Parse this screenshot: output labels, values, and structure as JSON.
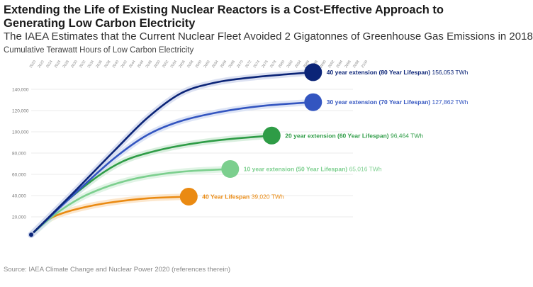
{
  "title": "Extending the Life of Existing Nuclear Reactors is a Cost-Effective Approach to Generating Low Carbon Electricity",
  "subtitle": "The IAEA Estimates that the Current Nuclear Fleet Avoided 2 Gigatonnes of Greenhouse Gas Emissions in 2018",
  "caption": "Cumulative Terawatt Hours of Low Carbon Electricity",
  "source": "Source: IAEA Climate Change and Nuclear Power 2020 (references therein)",
  "chart_data": {
    "type": "line",
    "x_ticks": [
      "2020",
      "2022",
      "2024",
      "2026",
      "2028",
      "2030",
      "2032",
      "2034",
      "2036",
      "2038",
      "2040",
      "2042",
      "2044",
      "2046",
      "2048",
      "2050",
      "2052",
      "2054",
      "2056",
      "2058",
      "2060",
      "2062",
      "2064",
      "2066",
      "2068",
      "2070",
      "2072",
      "2074",
      "2076",
      "2078",
      "2080",
      "2082",
      "2084",
      "2086",
      "2088",
      "2090",
      "2092",
      "2094",
      "2096",
      "2098",
      "2100"
    ],
    "xlim": [
      2020,
      2100
    ],
    "ylim": [
      0,
      160000
    ],
    "y_ticks": [
      20000,
      40000,
      60000,
      80000,
      100000,
      120000,
      140000
    ],
    "y_tick_labels": [
      "20,000",
      "40,000",
      "60,000",
      "80,000",
      "100,000",
      "120,000",
      "140,000"
    ],
    "start": {
      "x": 2020,
      "y": 3200
    },
    "series": [
      {
        "name": "40 Year Lifespan",
        "end_x": 2058,
        "end_value": 39020,
        "end_label": "39,020 TWh",
        "color": "#ea8a12",
        "halo": "#fbe3c4",
        "points": [
          [
            2020,
            3200
          ],
          [
            2024,
            17000
          ],
          [
            2028,
            24000
          ],
          [
            2034,
            30000
          ],
          [
            2040,
            34000
          ],
          [
            2048,
            37400
          ],
          [
            2058,
            39020
          ]
        ]
      },
      {
        "name": "10 year extension (50 Year Lifespan)",
        "end_x": 2068,
        "end_value": 65016,
        "end_label": "65,016 TWh",
        "color": "#7ccf8e",
        "halo": "#dcf2e2",
        "points": [
          [
            2020,
            3200
          ],
          [
            2026,
            23000
          ],
          [
            2032,
            38000
          ],
          [
            2038,
            48000
          ],
          [
            2044,
            55000
          ],
          [
            2050,
            59500
          ],
          [
            2058,
            63000
          ],
          [
            2068,
            65016
          ]
        ]
      },
      {
        "name": "20 year extension (60 Year Lifespan)",
        "end_x": 2078,
        "end_value": 96464,
        "end_label": "96,464 TWh",
        "color": "#2e9c46",
        "halo": "#d4ecd9",
        "points": [
          [
            2020,
            3200
          ],
          [
            2028,
            33000
          ],
          [
            2036,
            58000
          ],
          [
            2042,
            72000
          ],
          [
            2048,
            80000
          ],
          [
            2056,
            87000
          ],
          [
            2066,
            92500
          ],
          [
            2078,
            96464
          ]
        ]
      },
      {
        "name": "30 year extension (70 Year Lifespan)",
        "end_x": 2088,
        "end_value": 127862,
        "end_label": "127,862 TWh",
        "color": "#3355c0",
        "halo": "#d8e0f4",
        "points": [
          [
            2020,
            3200
          ],
          [
            2030,
            40000
          ],
          [
            2040,
            75000
          ],
          [
            2048,
            97000
          ],
          [
            2056,
            110000
          ],
          [
            2066,
            119000
          ],
          [
            2076,
            124500
          ],
          [
            2088,
            127862
          ]
        ]
      },
      {
        "name": "40 year extension (80 Year Lifespan)",
        "end_x": 2088,
        "end_value": 156053,
        "end_label": "156,053 TWh",
        "color": "#0b2477",
        "halo": "#d6dcf0",
        "points": [
          [
            2020,
            3200
          ],
          [
            2030,
            42000
          ],
          [
            2040,
            82000
          ],
          [
            2048,
            113000
          ],
          [
            2056,
            136000
          ],
          [
            2064,
            146000
          ],
          [
            2074,
            151500
          ],
          [
            2088,
            156053
          ]
        ]
      }
    ]
  }
}
